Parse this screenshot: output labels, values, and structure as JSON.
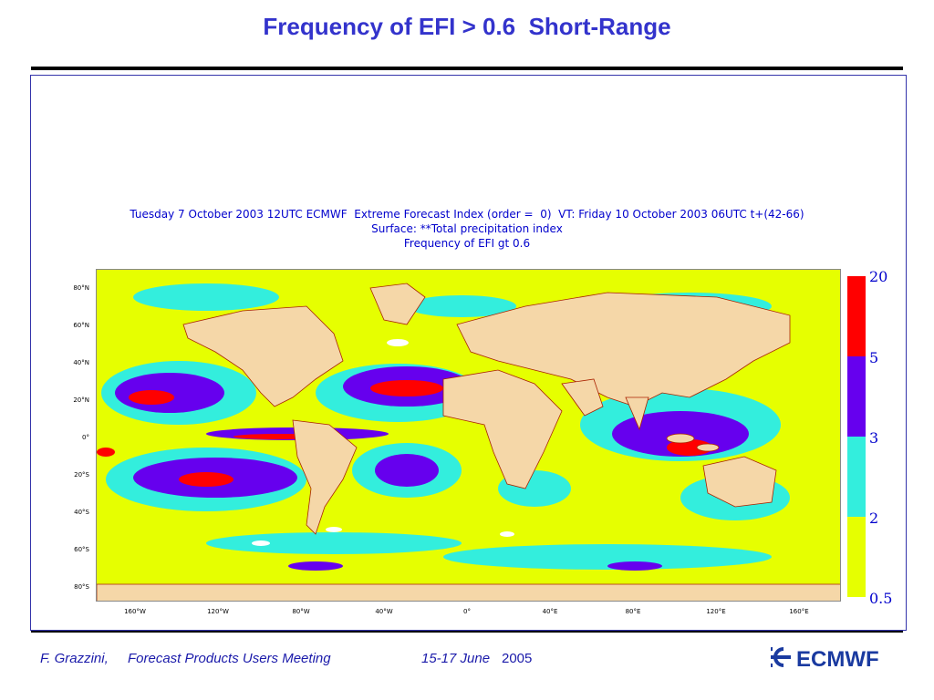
{
  "slide": {
    "title": "Frequency of EFI > 0.6  Short-Range"
  },
  "plot": {
    "title_line1": "Tuesday 7 October 2003 12UTC ECMWF  Extreme Forecast Index (order =  0)  VT: Friday 10 October 2003 06UTC t+(42-66)",
    "title_line2": "Surface: **Total precipitation index",
    "title_line3": "Frequency of EFI gt 0.6"
  },
  "map": {
    "lat_labels": [
      "80°N",
      "60°N",
      "40°N",
      "20°N",
      "0°",
      "20°S",
      "40°S",
      "60°S",
      "80°S"
    ],
    "lon_labels": [
      "160°W",
      "120°W",
      "80°W",
      "40°W",
      "0°",
      "40°E",
      "80°E",
      "120°E",
      "160°E"
    ],
    "colors": {
      "land": "#f5d7a8",
      "level_0_5": "#e6ff00",
      "level_2": "#33eedd",
      "level_3": "#6600ee",
      "level_5": "#ff0000",
      "coast": "#aa2200"
    }
  },
  "legend": {
    "labels": [
      "20",
      "5",
      "3",
      "2",
      "0.5"
    ],
    "colors": [
      "#ff0000",
      "#6600ee",
      "#33eedd",
      "#e6ff00"
    ]
  },
  "footer": {
    "author": "F. Grazzini,",
    "meeting": "Forecast Products Users Meeting",
    "dates_italic": "15-17 June",
    "year": "2005",
    "logo_text": "ECMWF"
  }
}
